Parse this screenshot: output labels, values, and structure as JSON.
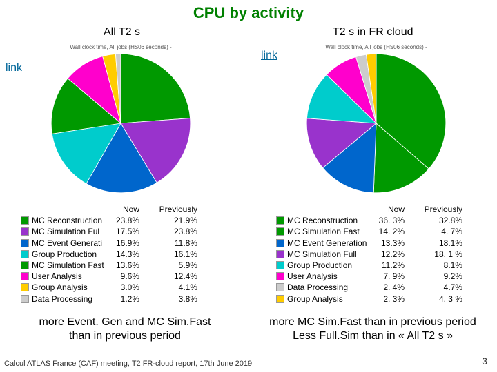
{
  "title": "CPU by activity",
  "title_color": "#008000",
  "title_fontsize": 22,
  "background_color": "#ffffff",
  "left": {
    "heading": "All T2 s",
    "link_text": "link",
    "caption": "Wall clock time, All jobs (HS06 seconds) -",
    "chart": {
      "type": "pie",
      "categories": [
        "MC Reconstruction",
        "MC Simulation Full",
        "MC Event Generation",
        "Group Production",
        "MC Simulation Fast",
        "User Analysis",
        "Group Analysis",
        "Data Processing"
      ],
      "values": [
        23.8,
        17.5,
        16.9,
        14.3,
        13.6,
        9.6,
        3.0,
        1.2
      ],
      "colors": [
        "#009900",
        "#9933cc",
        "#0066cc",
        "#00cccc",
        "#009900",
        "#ff00cc",
        "#ffcc00",
        "#cccccc"
      ],
      "start_angle": -90,
      "background_color": "#ffffff"
    },
    "table": {
      "now_header": "Now",
      "prev_header": "Previously",
      "rows": [
        {
          "color": "#009900",
          "label": "MC Reconstruction",
          "now": "23.8%",
          "prev": "21.9%"
        },
        {
          "color": "#9933cc",
          "label": "MC Simulation Ful",
          "now": "17.5%",
          "prev": "23.8%"
        },
        {
          "color": "#0066cc",
          "label": "MC Event Generati",
          "now": "16.9%",
          "prev": "11.8%"
        },
        {
          "color": "#00cccc",
          "label": "Group Production",
          "now": "14.3%",
          "prev": "16.1%"
        },
        {
          "color": "#009900",
          "label": "MC Simulation Fast",
          "now": "13.6%",
          "prev": " 5.9%"
        },
        {
          "color": "#ff00cc",
          "label": "User Analysis",
          "now": "9.6%",
          "prev": "12.4%"
        },
        {
          "color": "#ffcc00",
          "label": "Group Analysis",
          "now": "3.0%",
          "prev": "4.1%"
        },
        {
          "color": "#cccccc",
          "label": "Data Processing",
          "now": "1.2%",
          "prev": "3.8%"
        }
      ]
    },
    "summary_line1": "more Event. Gen and MC Sim.Fast",
    "summary_line2": "than in previous period"
  },
  "right": {
    "heading": "T2 s in FR cloud",
    "link_text": "link",
    "caption": "Wall clock time, All jobs (HS06 seconds) -",
    "chart": {
      "type": "pie",
      "categories": [
        "MC Reconstruction",
        "MC Simulation Fast",
        "MC Event Generation",
        "MC Simulation Full",
        "Group Production",
        "User Analysis",
        "Data Processing",
        "Group Analysis"
      ],
      "values": [
        36.3,
        14.2,
        13.3,
        12.2,
        11.2,
        7.9,
        2.4,
        2.3
      ],
      "colors": [
        "#009900",
        "#009900",
        "#0066cc",
        "#9933cc",
        "#00cccc",
        "#ff00cc",
        "#cccccc",
        "#ffcc00"
      ],
      "start_angle": -90,
      "background_color": "#ffffff"
    },
    "table": {
      "now_header": "Now",
      "prev_header": "Previously",
      "rows": [
        {
          "color": "#009900",
          "label": "MC Reconstruction",
          "now": "36. 3%",
          "prev": "32.8%"
        },
        {
          "color": "#009900",
          "label": "MC Simulation Fast",
          "now": "14. 2%",
          "prev": " 4. 7%"
        },
        {
          "color": "#0066cc",
          "label": "MC Event Generation",
          "now": "13.3%",
          "prev": "18.1%"
        },
        {
          "color": "#9933cc",
          "label": "MC Simulation Full",
          "now": "12.2%",
          "prev": "18. 1 %"
        },
        {
          "color": "#00cccc",
          "label": "Group Production",
          "now": "11.2%",
          "prev": "8.1%"
        },
        {
          "color": "#ff00cc",
          "label": "User Analysis",
          "now": "7. 9%",
          "prev": "9.2%"
        },
        {
          "color": "#cccccc",
          "label": "Data Processing",
          "now": "2. 4%",
          "prev": "4.7%"
        },
        {
          "color": "#ffcc00",
          "label": "Group Analysis",
          "now": "2. 3%",
          "prev": "4. 3 %"
        }
      ]
    },
    "summary_line1": "more MC Sim.Fast than in previous period",
    "summary_line2": "Less Full.Sim than in « All T2 s »"
  },
  "footer": "Calcul ATLAS France (CAF) meeting, T2 FR-cloud report, 17th June 2019",
  "page_number": "3"
}
